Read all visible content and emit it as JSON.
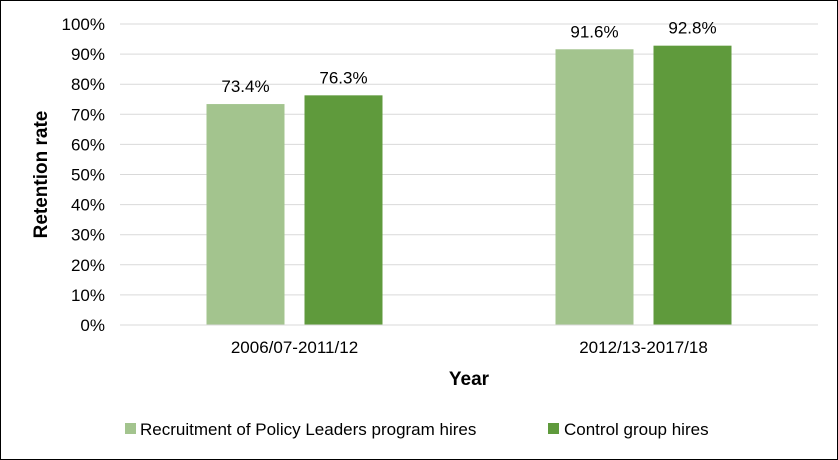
{
  "chart_data": {
    "type": "bar",
    "title": "",
    "xlabel": "Year",
    "ylabel": "Retention rate",
    "ylim": [
      0,
      100
    ],
    "yticks": [
      "0%",
      "10%",
      "20%",
      "30%",
      "40%",
      "50%",
      "60%",
      "70%",
      "80%",
      "90%",
      "100%"
    ],
    "categories": [
      "2006/07-2011/12",
      "2012/13-2017/18"
    ],
    "series": [
      {
        "name": "Recruitment of Policy Leaders program hires",
        "color": "#a3c48e",
        "values": [
          73.4,
          91.6
        ],
        "labels": [
          "73.4%",
          "91.6%"
        ]
      },
      {
        "name": "Control group hires",
        "color": "#5f9a3c",
        "values": [
          76.3,
          92.8
        ],
        "labels": [
          "76.3%",
          "92.8%"
        ]
      }
    ],
    "grid": true,
    "legend": "bottom"
  }
}
